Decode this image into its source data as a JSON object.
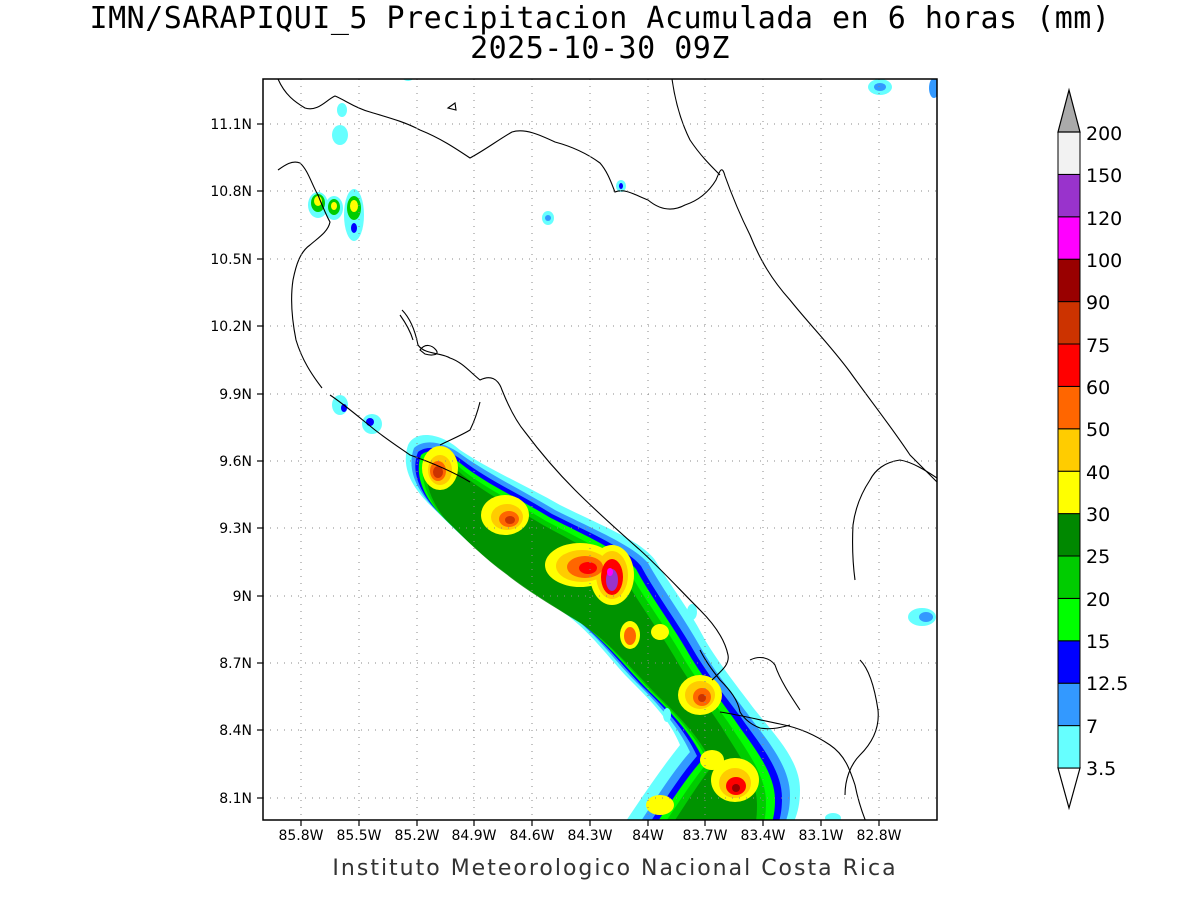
{
  "title_line1": "IMN/SARAPIQUI_5 Precipitacion Acumulada en 6 horas (mm)",
  "title_line2": "2025-10-30 09Z",
  "footer": "Instituto Meteorologico Nacional Costa Rica",
  "map": {
    "lon_range": [
      -86.0,
      -82.5
    ],
    "lat_range": [
      8.0,
      11.3
    ],
    "lon_ticks": [
      "85.8W",
      "85.5W",
      "85.2W",
      "84.9W",
      "84.6W",
      "84.3W",
      "84W",
      "83.7W",
      "83.4W",
      "83.1W",
      "82.8W"
    ],
    "lon_tick_values": [
      -85.8,
      -85.5,
      -85.2,
      -84.9,
      -84.6,
      -84.3,
      -84.0,
      -83.7,
      -83.4,
      -83.1,
      -82.8
    ],
    "lat_ticks": [
      "11.1N",
      "10.8N",
      "10.5N",
      "10.2N",
      "9.9N",
      "9.6N",
      "9.3N",
      "9N",
      "8.7N",
      "8.4N",
      "8.1N"
    ],
    "lat_tick_values": [
      11.1,
      10.8,
      10.5,
      10.2,
      9.9,
      9.6,
      9.3,
      9.0,
      8.7,
      8.4,
      8.1
    ],
    "grid": "dotted"
  },
  "colorbar": {
    "labels": [
      "3.5",
      "7",
      "12.5",
      "15",
      "20",
      "25",
      "30",
      "40",
      "50",
      "60",
      "75",
      "90",
      "100",
      "120",
      "150",
      "200"
    ],
    "colors": [
      "#ffffff",
      "#66ffff",
      "#3399ff",
      "#0000ff",
      "#00ff00",
      "#00cc00",
      "#008800",
      "#ffff00",
      "#ffcc00",
      "#ff6600",
      "#ff0000",
      "#cc3300",
      "#990000",
      "#ff00ff",
      "#9933cc",
      "#f2f2f2",
      "#aaaaaa"
    ]
  }
}
